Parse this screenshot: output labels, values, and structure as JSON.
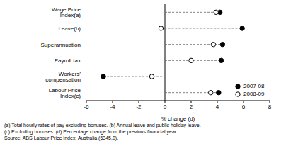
{
  "chart_data": {
    "type": "dot",
    "orientation": "horizontal",
    "categories": [
      "Wage Price Index(a)",
      "Leave(b)",
      "Superannuation",
      "Payroll tax",
      "Workers' compensation",
      "Labour Price Index(c)"
    ],
    "series": [
      {
        "name": "2007-08",
        "color": "#000000",
        "marker": "filled_circle",
        "values": [
          4.2,
          5.9,
          4.4,
          4.3,
          -4.7,
          4.1
        ]
      },
      {
        "name": "2008-09",
        "color": "#000000",
        "marker": "open_circle",
        "values": [
          3.9,
          -0.3,
          3.7,
          2.0,
          -1.0,
          3.5
        ]
      }
    ],
    "x_label": "% change (d)",
    "xlim": [
      -6,
      8
    ],
    "xticks": [
      -6,
      -4,
      -2,
      0,
      2,
      4,
      6,
      8
    ],
    "grid": false,
    "legend": "lower right",
    "notes": [
      "(a) Total hourly rates of pay excluding bonuses. (b) Annual leave and public holiday leave.",
      "(c) Excluding bonuses. (d) Percentage change from the previous financial year.",
      "Source: ABS Labour Price Index, Australia (6345.0)."
    ]
  }
}
